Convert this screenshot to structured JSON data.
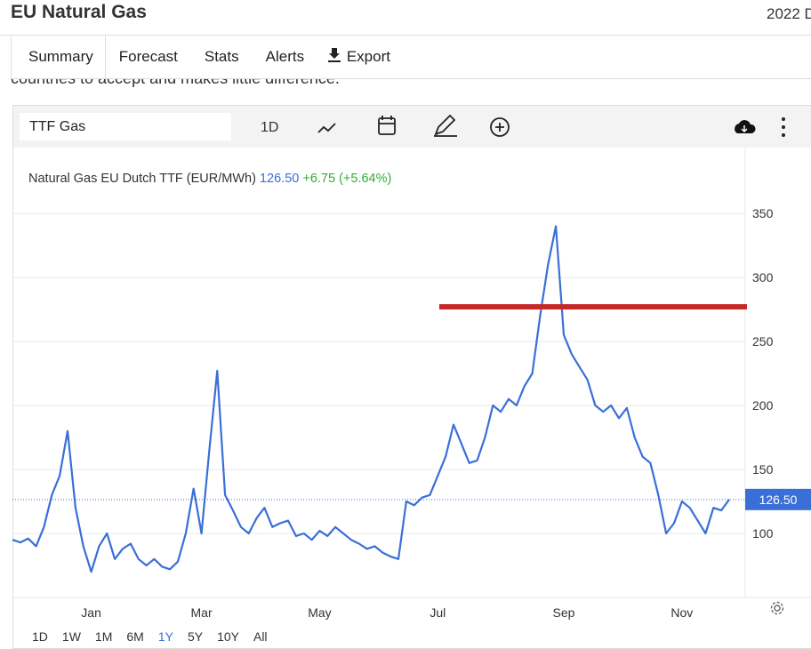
{
  "header": {
    "title": "EU Natural Gas",
    "date": "2022 D"
  },
  "tabs": [
    "Summary",
    "Forecast",
    "Stats",
    "Alerts",
    "Export"
  ],
  "article_text": "countries to accept and makes little difference.",
  "toolbar": {
    "symbol": "TTF Gas",
    "interval": "1D"
  },
  "range_buttons": [
    "1D",
    "1W",
    "1M",
    "6M",
    "1Y",
    "5Y",
    "10Y",
    "All"
  ],
  "chart_data": {
    "type": "line",
    "title": "Natural Gas EU Dutch TTF (EUR/MWh)",
    "last": {
      "value": 126.5,
      "label": "126.50"
    },
    "change": "+6.75 (+5.64%)",
    "color": "#3a6fd8",
    "categories": [
      null,
      null,
      null,
      null,
      null,
      null,
      null,
      null,
      null,
      null,
      "Jan",
      null,
      null,
      null,
      null,
      null,
      null,
      null,
      null,
      null,
      null,
      null,
      null,
      null,
      "Mar",
      null,
      null,
      null,
      null,
      null,
      null,
      null,
      null,
      null,
      null,
      null,
      null,
      null,
      null,
      "May",
      null,
      null,
      null,
      null,
      null,
      null,
      null,
      null,
      null,
      null,
      null,
      null,
      null,
      null,
      "Jul",
      null,
      null,
      null,
      null,
      null,
      null,
      null,
      null,
      null,
      null,
      null,
      null,
      null,
      null,
      null,
      "Sep",
      null,
      null,
      null,
      null,
      null,
      null,
      null,
      null,
      null,
      null,
      null,
      null,
      null,
      null,
      "Nov",
      null,
      null,
      null,
      null,
      null,
      null
    ],
    "values": [
      95,
      93,
      96,
      90,
      105,
      130,
      145,
      180,
      120,
      90,
      70,
      90,
      100,
      80,
      88,
      92,
      80,
      75,
      80,
      74,
      72,
      78,
      100,
      135,
      100,
      165,
      227,
      130,
      118,
      105,
      100,
      112,
      120,
      105,
      108,
      110,
      98,
      100,
      95,
      102,
      98,
      105,
      100,
      95,
      92,
      88,
      90,
      85,
      82,
      80,
      125,
      122,
      128,
      130,
      145,
      160,
      185,
      170,
      155,
      157,
      175,
      200,
      195,
      205,
      200,
      215,
      225,
      270,
      310,
      340,
      255,
      240,
      230,
      220,
      200,
      195,
      200,
      190,
      198,
      175,
      160,
      155,
      130,
      100,
      108,
      125,
      120,
      110,
      100,
      120,
      118,
      126.5
    ],
    "ylim": [
      50,
      400
    ],
    "yticks": [
      100,
      150,
      200,
      250,
      300,
      350
    ],
    "grid": true,
    "reference_line": {
      "value": 277,
      "color": "#c62828"
    }
  }
}
